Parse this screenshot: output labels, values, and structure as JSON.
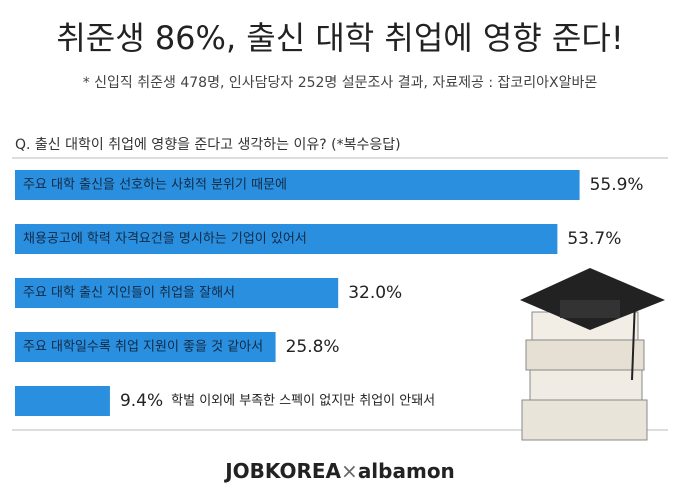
{
  "chart_data": {
    "type": "bar",
    "orientation": "horizontal",
    "title": "취준생 86%, 출신 대학 취업에 영향 준다!",
    "subtitle": "* 신입직 취준생 478명, 인사담당자 252명 설문조사 결과, 자료제공 : 잡코리아X알바몬",
    "question": "Q. 출신 대학이 취업에 영향을 준다고 생각하는 이유? (*복수응답)",
    "categories": [
      "주요 대학 출신을 선호하는 사회적 분위기 때문에",
      "채용공고에 학력 자격요건을 명시하는 기업이 있어서",
      "주요 대학 출신 지인들이 취업을 잘해서",
      "주요 대학일수록 취업 지원이 좋을 것 같아서",
      "학벌 이외에 부족한 스펙이 없지만 취업이 안돼서"
    ],
    "values": [
      55.9,
      53.7,
      32.0,
      25.8,
      9.4
    ],
    "value_labels": [
      "55.9%",
      "53.7%",
      "32.0%",
      "25.8%",
      "9.4%"
    ],
    "color": "#2b8fe0",
    "footer": {
      "brand1": "JOBKOREA",
      "separator": "×",
      "brand2": "albamon"
    }
  }
}
